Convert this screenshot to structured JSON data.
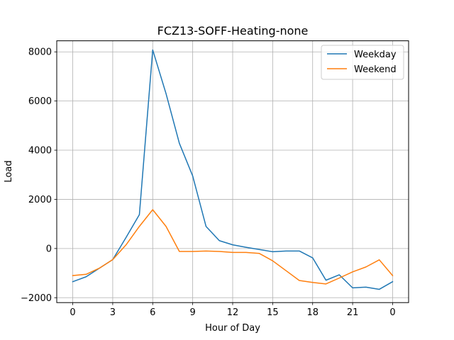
{
  "chart_data": {
    "type": "line",
    "title": "FCZ13-SOFF-Heating-none",
    "xlabel": "Hour of Day",
    "ylabel": "Load",
    "x_tick_labels": [
      "0",
      "3",
      "6",
      "9",
      "12",
      "15",
      "18",
      "21",
      "0"
    ],
    "y_ticks": [
      -2000,
      0,
      2000,
      4000,
      6000,
      8000
    ],
    "y_tick_labels": [
      "−2000",
      "0",
      "2000",
      "4000",
      "6000",
      "8000"
    ],
    "xlim": [
      -1.2,
      25.2
    ],
    "ylim": [
      -2200,
      8450
    ],
    "grid": true,
    "legend_position": "top-right",
    "x": [
      0,
      1,
      2,
      3,
      4,
      5,
      6,
      7,
      8,
      9,
      10,
      11,
      12,
      13,
      14,
      15,
      16,
      17,
      18,
      19,
      20,
      21,
      22,
      23,
      24
    ],
    "series": [
      {
        "name": "Weekday",
        "color": "#1f77b4",
        "values": [
          -1350,
          -1150,
          -800,
          -450,
          450,
          1380,
          8080,
          6300,
          4280,
          2950,
          900,
          320,
          150,
          50,
          -40,
          -130,
          -100,
          -100,
          -380,
          -1290,
          -1070,
          -1600,
          -1570,
          -1660,
          -1350
        ]
      },
      {
        "name": "Weekend",
        "color": "#ff7f0e",
        "values": [
          -1100,
          -1050,
          -800,
          -450,
          150,
          900,
          1580,
          900,
          -120,
          -120,
          -100,
          -120,
          -160,
          -160,
          -200,
          -500,
          -900,
          -1300,
          -1380,
          -1440,
          -1200,
          -950,
          -750,
          -460,
          -1100
        ]
      }
    ]
  }
}
